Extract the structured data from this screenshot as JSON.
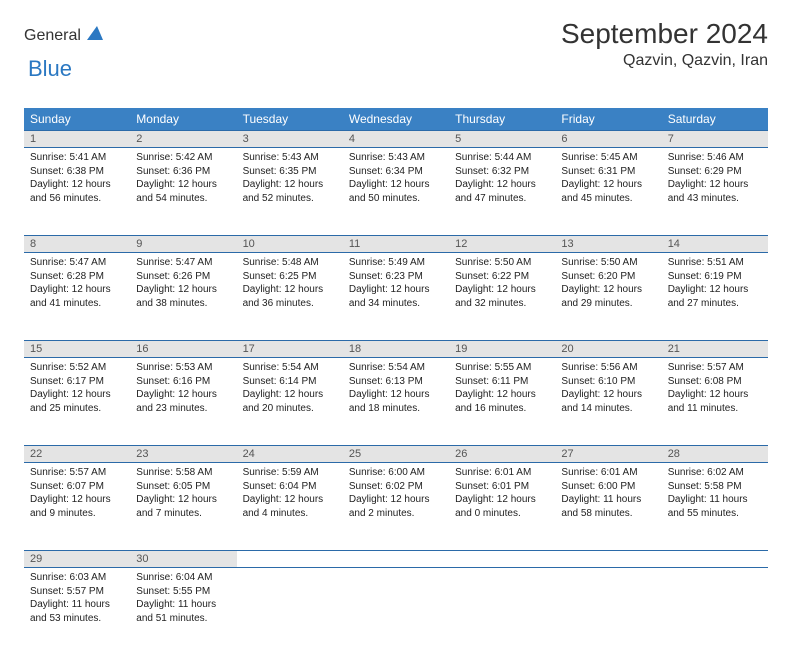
{
  "logo": {
    "text_gray": "General",
    "text_blue": "Blue"
  },
  "title": "September 2024",
  "location": "Qazvin, Qazvin, Iran",
  "day_headers": [
    "Sunday",
    "Monday",
    "Tuesday",
    "Wednesday",
    "Thursday",
    "Friday",
    "Saturday"
  ],
  "colors": {
    "header_bg": "#3a81c4",
    "daynum_bg": "#e4e4e4",
    "rule": "#2b6aa8"
  },
  "weeks": [
    [
      {
        "n": "1",
        "sr": "5:41 AM",
        "ss": "6:38 PM",
        "dl": "12 hours and 56 minutes."
      },
      {
        "n": "2",
        "sr": "5:42 AM",
        "ss": "6:36 PM",
        "dl": "12 hours and 54 minutes."
      },
      {
        "n": "3",
        "sr": "5:43 AM",
        "ss": "6:35 PM",
        "dl": "12 hours and 52 minutes."
      },
      {
        "n": "4",
        "sr": "5:43 AM",
        "ss": "6:34 PM",
        "dl": "12 hours and 50 minutes."
      },
      {
        "n": "5",
        "sr": "5:44 AM",
        "ss": "6:32 PM",
        "dl": "12 hours and 47 minutes."
      },
      {
        "n": "6",
        "sr": "5:45 AM",
        "ss": "6:31 PM",
        "dl": "12 hours and 45 minutes."
      },
      {
        "n": "7",
        "sr": "5:46 AM",
        "ss": "6:29 PM",
        "dl": "12 hours and 43 minutes."
      }
    ],
    [
      {
        "n": "8",
        "sr": "5:47 AM",
        "ss": "6:28 PM",
        "dl": "12 hours and 41 minutes."
      },
      {
        "n": "9",
        "sr": "5:47 AM",
        "ss": "6:26 PM",
        "dl": "12 hours and 38 minutes."
      },
      {
        "n": "10",
        "sr": "5:48 AM",
        "ss": "6:25 PM",
        "dl": "12 hours and 36 minutes."
      },
      {
        "n": "11",
        "sr": "5:49 AM",
        "ss": "6:23 PM",
        "dl": "12 hours and 34 minutes."
      },
      {
        "n": "12",
        "sr": "5:50 AM",
        "ss": "6:22 PM",
        "dl": "12 hours and 32 minutes."
      },
      {
        "n": "13",
        "sr": "5:50 AM",
        "ss": "6:20 PM",
        "dl": "12 hours and 29 minutes."
      },
      {
        "n": "14",
        "sr": "5:51 AM",
        "ss": "6:19 PM",
        "dl": "12 hours and 27 minutes."
      }
    ],
    [
      {
        "n": "15",
        "sr": "5:52 AM",
        "ss": "6:17 PM",
        "dl": "12 hours and 25 minutes."
      },
      {
        "n": "16",
        "sr": "5:53 AM",
        "ss": "6:16 PM",
        "dl": "12 hours and 23 minutes."
      },
      {
        "n": "17",
        "sr": "5:54 AM",
        "ss": "6:14 PM",
        "dl": "12 hours and 20 minutes."
      },
      {
        "n": "18",
        "sr": "5:54 AM",
        "ss": "6:13 PM",
        "dl": "12 hours and 18 minutes."
      },
      {
        "n": "19",
        "sr": "5:55 AM",
        "ss": "6:11 PM",
        "dl": "12 hours and 16 minutes."
      },
      {
        "n": "20",
        "sr": "5:56 AM",
        "ss": "6:10 PM",
        "dl": "12 hours and 14 minutes."
      },
      {
        "n": "21",
        "sr": "5:57 AM",
        "ss": "6:08 PM",
        "dl": "12 hours and 11 minutes."
      }
    ],
    [
      {
        "n": "22",
        "sr": "5:57 AM",
        "ss": "6:07 PM",
        "dl": "12 hours and 9 minutes."
      },
      {
        "n": "23",
        "sr": "5:58 AM",
        "ss": "6:05 PM",
        "dl": "12 hours and 7 minutes."
      },
      {
        "n": "24",
        "sr": "5:59 AM",
        "ss": "6:04 PM",
        "dl": "12 hours and 4 minutes."
      },
      {
        "n": "25",
        "sr": "6:00 AM",
        "ss": "6:02 PM",
        "dl": "12 hours and 2 minutes."
      },
      {
        "n": "26",
        "sr": "6:01 AM",
        "ss": "6:01 PM",
        "dl": "12 hours and 0 minutes."
      },
      {
        "n": "27",
        "sr": "6:01 AM",
        "ss": "6:00 PM",
        "dl": "11 hours and 58 minutes."
      },
      {
        "n": "28",
        "sr": "6:02 AM",
        "ss": "5:58 PM",
        "dl": "11 hours and 55 minutes."
      }
    ],
    [
      {
        "n": "29",
        "sr": "6:03 AM",
        "ss": "5:57 PM",
        "dl": "11 hours and 53 minutes."
      },
      {
        "n": "30",
        "sr": "6:04 AM",
        "ss": "5:55 PM",
        "dl": "11 hours and 51 minutes."
      },
      null,
      null,
      null,
      null,
      null
    ]
  ],
  "labels": {
    "sunrise": "Sunrise: ",
    "sunset": "Sunset: ",
    "daylight": "Daylight: "
  }
}
